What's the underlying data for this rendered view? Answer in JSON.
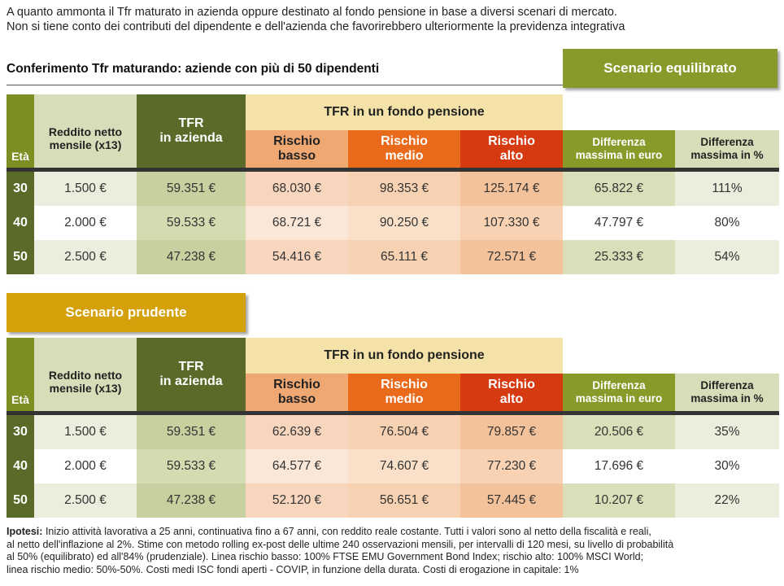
{
  "intro": {
    "line1": "A quanto ammonta il Tfr maturato in azienda oppure destinato al fondo pensione in base a diversi scenari di mercato.",
    "line2": "Non si tiene conto dei contributi del dipendente e dell'azienda che favorirebbero ulteriormente la previdenza integrativa"
  },
  "section_title": "Conferimento Tfr maturando: aziende con più di 50 dipendenti",
  "headers": {
    "eta": "Età",
    "reddito_1": "Reddito netto",
    "reddito_2": "mensile (x13)",
    "tfr_1": "TFR",
    "tfr_2": "in azienda",
    "fondo": "TFR in un fondo pensione",
    "rb_1": "Rischio",
    "rb_2": "basso",
    "rm_1": "Rischio",
    "rm_2": "medio",
    "ra_1": "Rischio",
    "ra_2": "alto",
    "de_1": "Differenza",
    "de_2": "massima in euro",
    "dp_1": "Differenza",
    "dp_2": "massima in %"
  },
  "scenarios": [
    {
      "name": "Scenario equilibrato",
      "rows": [
        {
          "eta": "30",
          "reddito": "1.500 €",
          "tfr": "59.351 €",
          "rb": "68.030 €",
          "rm": "98.353 €",
          "ra": "125.174 €",
          "de": "65.822 €",
          "dp": "111%"
        },
        {
          "eta": "40",
          "reddito": "2.000 €",
          "tfr": "59.533 €",
          "rb": "68.721 €",
          "rm": "90.250 €",
          "ra": "107.330 €",
          "de": "47.797 €",
          "dp": "80%"
        },
        {
          "eta": "50",
          "reddito": "2.500 €",
          "tfr": "47.238 €",
          "rb": "54.416 €",
          "rm": "65.111 €",
          "ra": "72.571 €",
          "de": "25.333 €",
          "dp": "54%"
        }
      ]
    },
    {
      "name": "Scenario prudente",
      "rows": [
        {
          "eta": "30",
          "reddito": "1.500 €",
          "tfr": "59.351 €",
          "rb": "62.639 €",
          "rm": "76.504 €",
          "ra": "79.857 €",
          "de": "20.506 €",
          "dp": "35%"
        },
        {
          "eta": "40",
          "reddito": "2.000 €",
          "tfr": "59.533 €",
          "rb": "64.577 €",
          "rm": "74.607 €",
          "ra": "77.230 €",
          "de": "17.696 €",
          "dp": "30%"
        },
        {
          "eta": "50",
          "reddito": "2.500 €",
          "tfr": "47.238 €",
          "rb": "52.120 €",
          "rm": "56.651 €",
          "ra": "57.445 €",
          "de": "10.207 €",
          "dp": "22%"
        }
      ]
    }
  ],
  "notes": {
    "label": "Ipotesi:",
    "line1": "Inizio attività lavorativa a 25 anni, continuativa fino a 67 anni, con reddito reale costante. Tutti i valori sono al netto della fiscalità e reali,",
    "line2": "al netto dell'inflazione al 2%. Stime con metodo rolling ex-post delle ultime 240 osservazioni mensili, per intervalli di 120 mesi, su livello di probabilità",
    "line3": "al 50% (equilibrato) ed all'84% (prudenziale). Linea rischio basso: 100% FTSE EMU Government Bond Index; rischio alto: 100% MSCI World;",
    "line4": "linea rischio medio: 50%-50%. Costi medi ISC fondi aperti - COVIP, in funzione della durata. Costi di erogazione in capitale: 1%"
  },
  "colors": {
    "olive_dark": "#5a6a28",
    "olive": "#8a9a2a",
    "mustard": "#d4a10a",
    "rischio_basso": "#f0a872",
    "rischio_medio": "#e86a1a",
    "rischio_alto": "#d63a10"
  }
}
